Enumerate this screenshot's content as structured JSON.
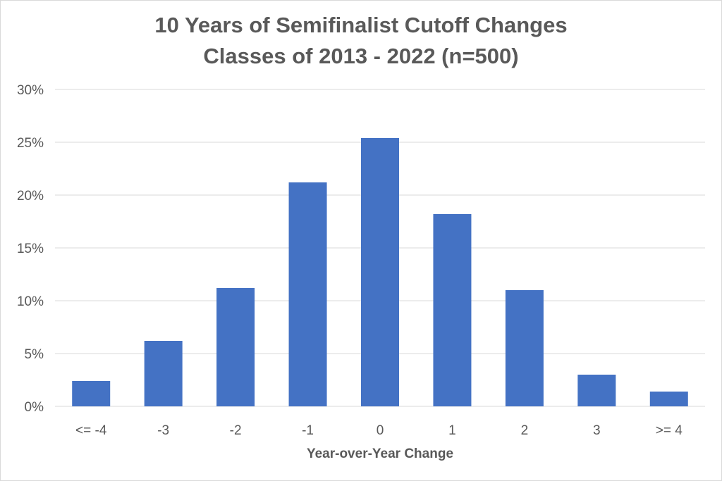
{
  "chart_data": {
    "type": "bar",
    "title": "10 Years of Semifinalist Cutoff Changes",
    "subtitle": "Classes of 2013 - 2022 (n=500)",
    "xlabel": "Year-over-Year Change",
    "ylabel": "",
    "categories": [
      "<= -4",
      "-3",
      "-2",
      "-1",
      "0",
      "1",
      "2",
      "3",
      ">= 4"
    ],
    "values": [
      2.4,
      6.2,
      11.2,
      21.2,
      25.4,
      18.2,
      11.0,
      3.0,
      1.4
    ],
    "ylim": [
      0,
      30
    ],
    "yticks": [
      "0%",
      "5%",
      "10%",
      "15%",
      "20%",
      "25%",
      "30%"
    ],
    "grid": true,
    "legend": "none",
    "colors": {
      "bar": "#4472c4",
      "grid": "#d9d9d9",
      "text": "#595959"
    }
  }
}
